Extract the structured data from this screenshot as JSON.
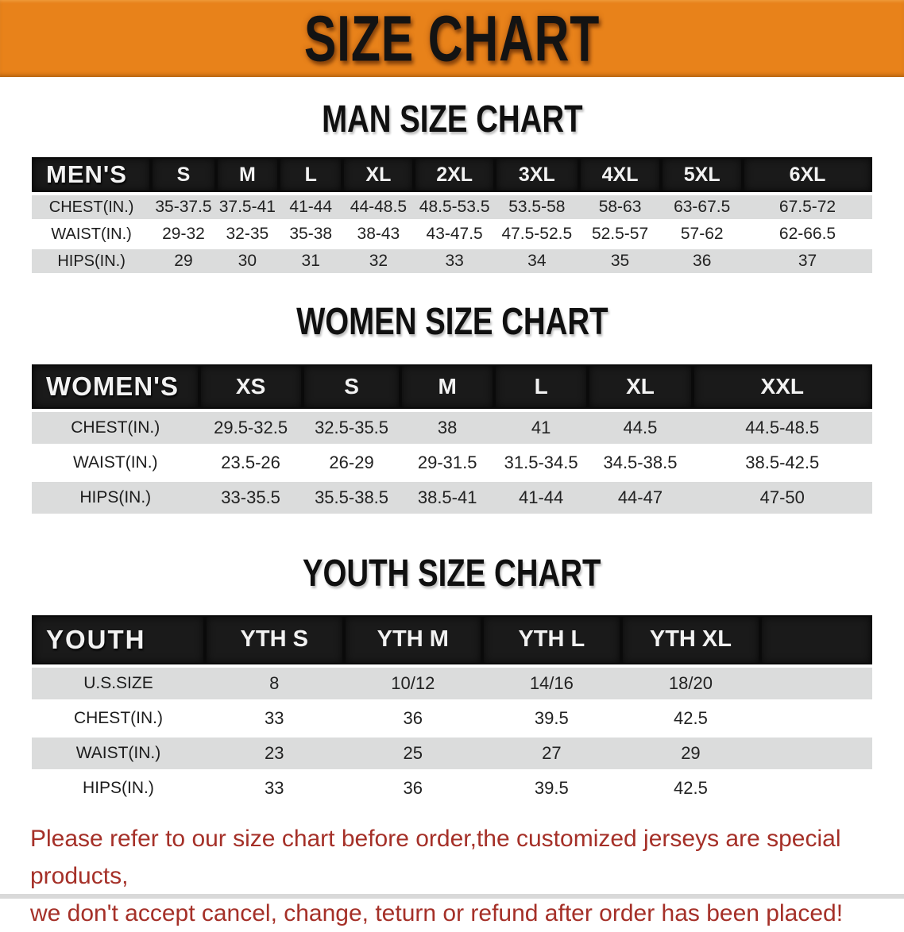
{
  "banner": {
    "title": "SIZE CHART"
  },
  "sections": [
    {
      "heading": "MAN SIZE CHART",
      "table": {
        "header_label": "MEN'S",
        "sizes": [
          "S",
          "M",
          "L",
          "XL",
          "2XL",
          "3XL",
          "4XL",
          "5XL",
          "6XL"
        ],
        "rows": [
          {
            "label": "CHEST(IN.)",
            "values": [
              "35-37.5",
              "37.5-41",
              "41-44",
              "44-48.5",
              "48.5-53.5",
              "53.5-58",
              "58-63",
              "63-67.5",
              "67.5-72"
            ]
          },
          {
            "label": "WAIST(IN.)",
            "values": [
              "29-32",
              "32-35",
              "35-38",
              "38-43",
              "43-47.5",
              "47.5-52.5",
              "52.5-57",
              "57-62",
              "62-66.5"
            ]
          },
          {
            "label": "HIPS(IN.)",
            "values": [
              "29",
              "30",
              "31",
              "32",
              "33",
              "34",
              "35",
              "36",
              "37"
            ]
          }
        ]
      }
    },
    {
      "heading": "WOMEN SIZE CHART",
      "table": {
        "header_label": "WOMEN'S",
        "sizes": [
          "XS",
          "S",
          "M",
          "L",
          "XL",
          "XXL"
        ],
        "rows": [
          {
            "label": "CHEST(IN.)",
            "values": [
              "29.5-32.5",
              "32.5-35.5",
              "38",
              "41",
              "44.5",
              "44.5-48.5"
            ]
          },
          {
            "label": "WAIST(IN.)",
            "values": [
              "23.5-26",
              "26-29",
              "29-31.5",
              "31.5-34.5",
              "34.5-38.5",
              "38.5-42.5"
            ]
          },
          {
            "label": "HIPS(IN.)",
            "values": [
              "33-35.5",
              "35.5-38.5",
              "38.5-41",
              "41-44",
              "44-47",
              "47-50"
            ]
          }
        ]
      }
    },
    {
      "heading": "YOUTH SIZE CHART",
      "table": {
        "header_label": "YOUTH",
        "sizes": [
          "YTH S",
          "YTH M",
          "YTH L",
          "YTH XL"
        ],
        "rows": [
          {
            "label": "U.S.SIZE",
            "values": [
              "8",
              "10/12",
              "14/16",
              "18/20"
            ]
          },
          {
            "label": "CHEST(IN.)",
            "values": [
              "33",
              "36",
              "39.5",
              "42.5"
            ]
          },
          {
            "label": "WAIST(IN.)",
            "values": [
              "23",
              "25",
              "27",
              "29"
            ]
          },
          {
            "label": "HIPS(IN.)",
            "values": [
              "33",
              "36",
              "39.5",
              "42.5"
            ]
          }
        ]
      }
    }
  ],
  "footer": {
    "line1": "Please refer to our size chart before order,the customized jerseys are special products,",
    "line2": "we don't accept cancel, change, teturn or refund after order has been placed!"
  },
  "colors": {
    "banner_bg": "#E8821A",
    "header_bar": "#1A1A1A",
    "row_stripe": "#DBDCDC",
    "notice_red": "#A53028"
  }
}
